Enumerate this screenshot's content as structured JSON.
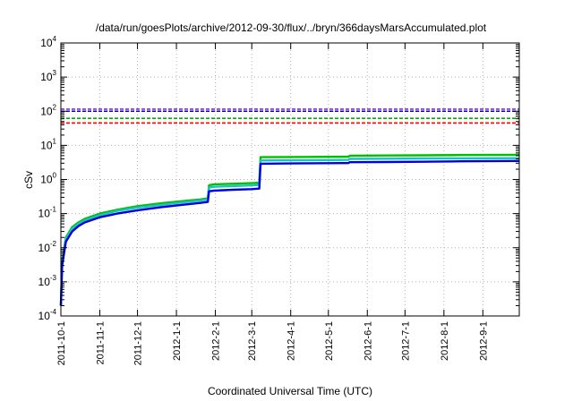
{
  "chart_data": {
    "type": "line",
    "title": "/data/run/goesPlots/archive/2012-09-30/flux/../bryn/366daysMarsAccumulated.plot",
    "xlabel": "Coordinated Universal Time (UTC)",
    "ylabel": "cSv",
    "yscale": "log",
    "ylim": [
      0.0001,
      10000
    ],
    "y_ticks": [
      {
        "base": "10",
        "exp": "-4",
        "value": 0.0001
      },
      {
        "base": "10",
        "exp": "-3",
        "value": 0.001
      },
      {
        "base": "10",
        "exp": "-2",
        "value": 0.01
      },
      {
        "base": "10",
        "exp": "-1",
        "value": 0.1
      },
      {
        "base": "10",
        "exp": "0",
        "value": 1
      },
      {
        "base": "10",
        "exp": "1",
        "value": 10
      },
      {
        "base": "10",
        "exp": "2",
        "value": 100
      },
      {
        "base": "10",
        "exp": "3",
        "value": 1000
      },
      {
        "base": "10",
        "exp": "4",
        "value": 10000
      }
    ],
    "xlim": [
      "2011-10-01",
      "2012-09-30"
    ],
    "x_ticks": [
      "2011-10-1",
      "2011-11-1",
      "2011-12-1",
      "2012-1-1",
      "2012-2-1",
      "2012-3-1",
      "2012-4-1",
      "2012-5-1",
      "2012-6-1",
      "2012-7-1",
      "2012-8-1",
      "2012-9-1"
    ],
    "grid": true,
    "legend": "none",
    "reference_lines": [
      {
        "color": "#8a2be2",
        "value": 115
      },
      {
        "color": "#0000cc",
        "value": 100
      },
      {
        "color": "#00b000",
        "value": 62
      },
      {
        "color": "#ff0000",
        "value": 45
      }
    ],
    "series": [
      {
        "color": "#00c000",
        "x": [
          "2011-10-01",
          "2011-10-02",
          "2011-10-05",
          "2011-10-10",
          "2011-10-15",
          "2011-10-20",
          "2011-11-01",
          "2011-11-15",
          "2011-12-01",
          "2011-12-20",
          "2012-01-05",
          "2012-01-20",
          "2012-01-26",
          "2012-01-27",
          "2012-01-31",
          "2012-02-15",
          "2012-03-01",
          "2012-03-07",
          "2012-03-08",
          "2012-04-01",
          "2012-05-01",
          "2012-05-17",
          "2012-05-18",
          "2012-06-15",
          "2012-07-15",
          "2012-08-15",
          "2012-09-30"
        ],
        "values": [
          0.0002,
          0.004,
          0.02,
          0.04,
          0.055,
          0.07,
          0.1,
          0.13,
          0.165,
          0.2,
          0.23,
          0.26,
          0.28,
          0.68,
          0.72,
          0.75,
          0.78,
          0.8,
          4.5,
          4.55,
          4.6,
          4.65,
          5.0,
          5.05,
          5.1,
          5.2,
          5.3
        ]
      },
      {
        "color": "#20c0c0",
        "x": [
          "2011-10-01",
          "2011-10-02",
          "2011-10-05",
          "2011-10-10",
          "2011-10-15",
          "2011-10-20",
          "2011-11-01",
          "2011-11-15",
          "2011-12-01",
          "2011-12-20",
          "2012-01-05",
          "2012-01-20",
          "2012-01-26",
          "2012-01-27",
          "2012-01-31",
          "2012-02-15",
          "2012-03-01",
          "2012-03-07",
          "2012-03-08",
          "2012-04-01",
          "2012-05-01",
          "2012-05-17",
          "2012-05-18",
          "2012-06-15",
          "2012-07-15",
          "2012-08-15",
          "2012-09-30"
        ],
        "values": [
          0.0002,
          0.0035,
          0.018,
          0.036,
          0.05,
          0.063,
          0.09,
          0.12,
          0.15,
          0.18,
          0.21,
          0.24,
          0.26,
          0.58,
          0.61,
          0.64,
          0.67,
          0.69,
          3.6,
          3.65,
          3.7,
          3.75,
          4.0,
          4.05,
          4.1,
          4.15,
          4.2
        ]
      },
      {
        "color": "#0000e0",
        "x": [
          "2011-10-01",
          "2011-10-02",
          "2011-10-05",
          "2011-10-10",
          "2011-10-15",
          "2011-10-20",
          "2011-11-01",
          "2011-11-15",
          "2011-12-01",
          "2011-12-20",
          "2012-01-05",
          "2012-01-20",
          "2012-01-26",
          "2012-01-27",
          "2012-01-31",
          "2012-02-15",
          "2012-03-01",
          "2012-03-07",
          "2012-03-08",
          "2012-04-01",
          "2012-05-01",
          "2012-05-17",
          "2012-05-18",
          "2012-06-15",
          "2012-07-15",
          "2012-08-15",
          "2012-09-30"
        ],
        "values": [
          0.0002,
          0.003,
          0.015,
          0.03,
          0.043,
          0.055,
          0.078,
          0.1,
          0.125,
          0.155,
          0.18,
          0.205,
          0.22,
          0.45,
          0.47,
          0.5,
          0.52,
          0.54,
          2.9,
          2.95,
          3.0,
          3.02,
          3.2,
          3.25,
          3.3,
          3.4,
          3.5
        ]
      }
    ]
  }
}
